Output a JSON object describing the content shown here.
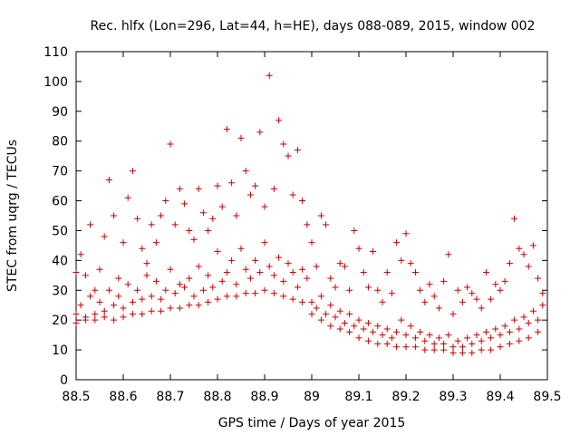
{
  "chart_data": {
    "type": "scatter",
    "title": "Rec. hlfx (Lon=296, Lat=44, h=HE), days 088-089, 2015, window 002",
    "xlabel": "GPS time / Days of year 2015",
    "ylabel": "STEC from uqrg / TECUs",
    "xlim": [
      88.5,
      89.5
    ],
    "ylim": [
      0,
      110
    ],
    "x_ticks": [
      "88.5",
      "88.6",
      "88.7",
      "88.8",
      "88.9",
      "89",
      "89.1",
      "89.2",
      "89.3",
      "89.4",
      "89.5"
    ],
    "y_ticks": [
      "0",
      "10",
      "20",
      "30",
      "40",
      "50",
      "60",
      "70",
      "80",
      "90",
      "100",
      "110"
    ],
    "grid": false,
    "legend": "none",
    "marker": "plus",
    "color": "#cc0000",
    "series": [
      {
        "points": [
          [
            88.5,
            36
          ],
          [
            88.51,
            42
          ],
          [
            88.52,
            35
          ],
          [
            88.53,
            52
          ],
          [
            88.54,
            30
          ],
          [
            88.55,
            37
          ],
          [
            88.56,
            48
          ],
          [
            88.57,
            67
          ],
          [
            88.58,
            55
          ],
          [
            88.59,
            34
          ],
          [
            88.6,
            46
          ],
          [
            88.61,
            61
          ],
          [
            88.62,
            70
          ],
          [
            88.63,
            54
          ],
          [
            88.64,
            44
          ],
          [
            88.65,
            39
          ],
          [
            88.66,
            52
          ],
          [
            88.67,
            46
          ],
          [
            88.68,
            55
          ],
          [
            88.69,
            60
          ],
          [
            88.7,
            79
          ],
          [
            88.71,
            52
          ],
          [
            88.72,
            64
          ],
          [
            88.73,
            59
          ],
          [
            88.74,
            50
          ],
          [
            88.75,
            47
          ],
          [
            88.76,
            64
          ],
          [
            88.77,
            56
          ],
          [
            88.78,
            50
          ],
          [
            88.79,
            54
          ],
          [
            88.8,
            65
          ],
          [
            88.81,
            58
          ],
          [
            88.82,
            84
          ],
          [
            88.83,
            66
          ],
          [
            88.84,
            55
          ],
          [
            88.85,
            81
          ],
          [
            88.86,
            70
          ],
          [
            88.87,
            62
          ],
          [
            88.88,
            65
          ],
          [
            88.89,
            83
          ],
          [
            88.9,
            58
          ],
          [
            88.91,
            102
          ],
          [
            88.92,
            64
          ],
          [
            88.93,
            87
          ],
          [
            88.94,
            79
          ],
          [
            88.95,
            75
          ],
          [
            88.96,
            62
          ],
          [
            88.97,
            77
          ],
          [
            88.98,
            60
          ],
          [
            88.99,
            52
          ],
          [
            89.0,
            46
          ],
          [
            89.01,
            38
          ],
          [
            89.02,
            55
          ],
          [
            89.03,
            52
          ],
          [
            89.04,
            34
          ],
          [
            89.05,
            31
          ],
          [
            89.06,
            39
          ],
          [
            89.07,
            38
          ],
          [
            89.08,
            30
          ],
          [
            89.09,
            50
          ],
          [
            89.1,
            44
          ],
          [
            89.11,
            36
          ],
          [
            89.12,
            31
          ],
          [
            89.13,
            43
          ],
          [
            89.14,
            30
          ],
          [
            89.15,
            26
          ],
          [
            89.16,
            36
          ],
          [
            89.17,
            29
          ],
          [
            89.18,
            46
          ],
          [
            89.19,
            40
          ],
          [
            89.2,
            49
          ],
          [
            89.21,
            39
          ],
          [
            89.22,
            36
          ],
          [
            89.23,
            30
          ],
          [
            89.24,
            26
          ],
          [
            89.25,
            32
          ],
          [
            89.26,
            28
          ],
          [
            89.27,
            24
          ],
          [
            89.28,
            33
          ],
          [
            89.29,
            42
          ],
          [
            89.3,
            22
          ],
          [
            89.31,
            30
          ],
          [
            89.32,
            26
          ],
          [
            89.33,
            31
          ],
          [
            89.34,
            29
          ],
          [
            89.35,
            27
          ],
          [
            89.36,
            24
          ],
          [
            89.37,
            36
          ],
          [
            89.38,
            27
          ],
          [
            89.39,
            32
          ],
          [
            89.4,
            30
          ],
          [
            89.41,
            33
          ],
          [
            89.42,
            39
          ],
          [
            89.43,
            54
          ],
          [
            89.44,
            44
          ],
          [
            89.45,
            42
          ],
          [
            89.46,
            38
          ],
          [
            89.47,
            45
          ],
          [
            89.48,
            34
          ],
          [
            89.49,
            29
          ],
          [
            88.5,
            22
          ],
          [
            88.51,
            25
          ],
          [
            88.52,
            20
          ],
          [
            88.53,
            28
          ],
          [
            88.54,
            22
          ],
          [
            88.55,
            26
          ],
          [
            88.56,
            23
          ],
          [
            88.57,
            30
          ],
          [
            88.58,
            25
          ],
          [
            88.59,
            28
          ],
          [
            88.6,
            24
          ],
          [
            88.61,
            32
          ],
          [
            88.62,
            26
          ],
          [
            88.63,
            30
          ],
          [
            88.64,
            27
          ],
          [
            88.65,
            35
          ],
          [
            88.66,
            28
          ],
          [
            88.67,
            33
          ],
          [
            88.68,
            27
          ],
          [
            88.69,
            30
          ],
          [
            88.7,
            37
          ],
          [
            88.71,
            29
          ],
          [
            88.72,
            32
          ],
          [
            88.73,
            31
          ],
          [
            88.74,
            34
          ],
          [
            88.75,
            28
          ],
          [
            88.76,
            38
          ],
          [
            88.77,
            30
          ],
          [
            88.78,
            35
          ],
          [
            88.79,
            31
          ],
          [
            88.8,
            43
          ],
          [
            88.81,
            33
          ],
          [
            88.82,
            36
          ],
          [
            88.83,
            40
          ],
          [
            88.84,
            32
          ],
          [
            88.85,
            44
          ],
          [
            88.86,
            37
          ],
          [
            88.87,
            34
          ],
          [
            88.88,
            40
          ],
          [
            88.89,
            36
          ],
          [
            88.9,
            46
          ],
          [
            88.91,
            38
          ],
          [
            88.92,
            35
          ],
          [
            88.93,
            41
          ],
          [
            88.94,
            33
          ],
          [
            88.95,
            39
          ],
          [
            88.96,
            36
          ],
          [
            88.97,
            31
          ],
          [
            88.98,
            37
          ],
          [
            88.99,
            34
          ],
          [
            89.0,
            26
          ],
          [
            89.01,
            24
          ],
          [
            89.02,
            28
          ],
          [
            89.03,
            22
          ],
          [
            89.04,
            25
          ],
          [
            89.05,
            21
          ],
          [
            89.06,
            23
          ],
          [
            89.07,
            19
          ],
          [
            89.08,
            22
          ],
          [
            89.09,
            18
          ],
          [
            89.1,
            20
          ],
          [
            89.11,
            17
          ],
          [
            89.12,
            19
          ],
          [
            89.13,
            16
          ],
          [
            89.14,
            18
          ],
          [
            89.15,
            15
          ],
          [
            89.16,
            17
          ],
          [
            89.17,
            14
          ],
          [
            89.18,
            16
          ],
          [
            89.19,
            20
          ],
          [
            89.2,
            15
          ],
          [
            89.21,
            18
          ],
          [
            89.22,
            14
          ],
          [
            89.23,
            16
          ],
          [
            89.24,
            13
          ],
          [
            89.25,
            15
          ],
          [
            89.26,
            12
          ],
          [
            89.27,
            14
          ],
          [
            89.28,
            12
          ],
          [
            89.29,
            15
          ],
          [
            89.3,
            11
          ],
          [
            89.31,
            13
          ],
          [
            89.32,
            11
          ],
          [
            89.33,
            14
          ],
          [
            89.34,
            12
          ],
          [
            89.35,
            15
          ],
          [
            89.36,
            13
          ],
          [
            89.37,
            16
          ],
          [
            89.38,
            14
          ],
          [
            89.39,
            17
          ],
          [
            89.4,
            15
          ],
          [
            89.41,
            18
          ],
          [
            89.42,
            16
          ],
          [
            89.43,
            20
          ],
          [
            89.44,
            17
          ],
          [
            89.45,
            21
          ],
          [
            89.46,
            19
          ],
          [
            89.47,
            23
          ],
          [
            89.48,
            20
          ],
          [
            89.49,
            25
          ],
          [
            88.5,
            19
          ],
          [
            88.52,
            21
          ],
          [
            88.54,
            20
          ],
          [
            88.56,
            21
          ],
          [
            88.58,
            20
          ],
          [
            88.6,
            21
          ],
          [
            88.62,
            22
          ],
          [
            88.64,
            22
          ],
          [
            88.66,
            23
          ],
          [
            88.68,
            23
          ],
          [
            88.7,
            24
          ],
          [
            88.72,
            24
          ],
          [
            88.74,
            25
          ],
          [
            88.76,
            25
          ],
          [
            88.78,
            26
          ],
          [
            88.8,
            27
          ],
          [
            88.82,
            28
          ],
          [
            88.84,
            28
          ],
          [
            88.86,
            29
          ],
          [
            88.88,
            29
          ],
          [
            88.9,
            30
          ],
          [
            88.92,
            29
          ],
          [
            88.94,
            28
          ],
          [
            88.96,
            27
          ],
          [
            88.98,
            26
          ],
          [
            89.0,
            22
          ],
          [
            89.02,
            20
          ],
          [
            89.04,
            18
          ],
          [
            89.06,
            17
          ],
          [
            89.08,
            16
          ],
          [
            89.1,
            14
          ],
          [
            89.12,
            13
          ],
          [
            89.14,
            12
          ],
          [
            89.16,
            12
          ],
          [
            89.18,
            11
          ],
          [
            89.2,
            11
          ],
          [
            89.22,
            11
          ],
          [
            89.24,
            10
          ],
          [
            89.26,
            10
          ],
          [
            89.28,
            10
          ],
          [
            89.3,
            9
          ],
          [
            89.32,
            9
          ],
          [
            89.34,
            9
          ],
          [
            89.36,
            10
          ],
          [
            89.38,
            10
          ],
          [
            89.4,
            11
          ],
          [
            89.42,
            12
          ],
          [
            89.44,
            13
          ],
          [
            89.46,
            14
          ],
          [
            89.48,
            16
          ]
        ]
      }
    ]
  }
}
